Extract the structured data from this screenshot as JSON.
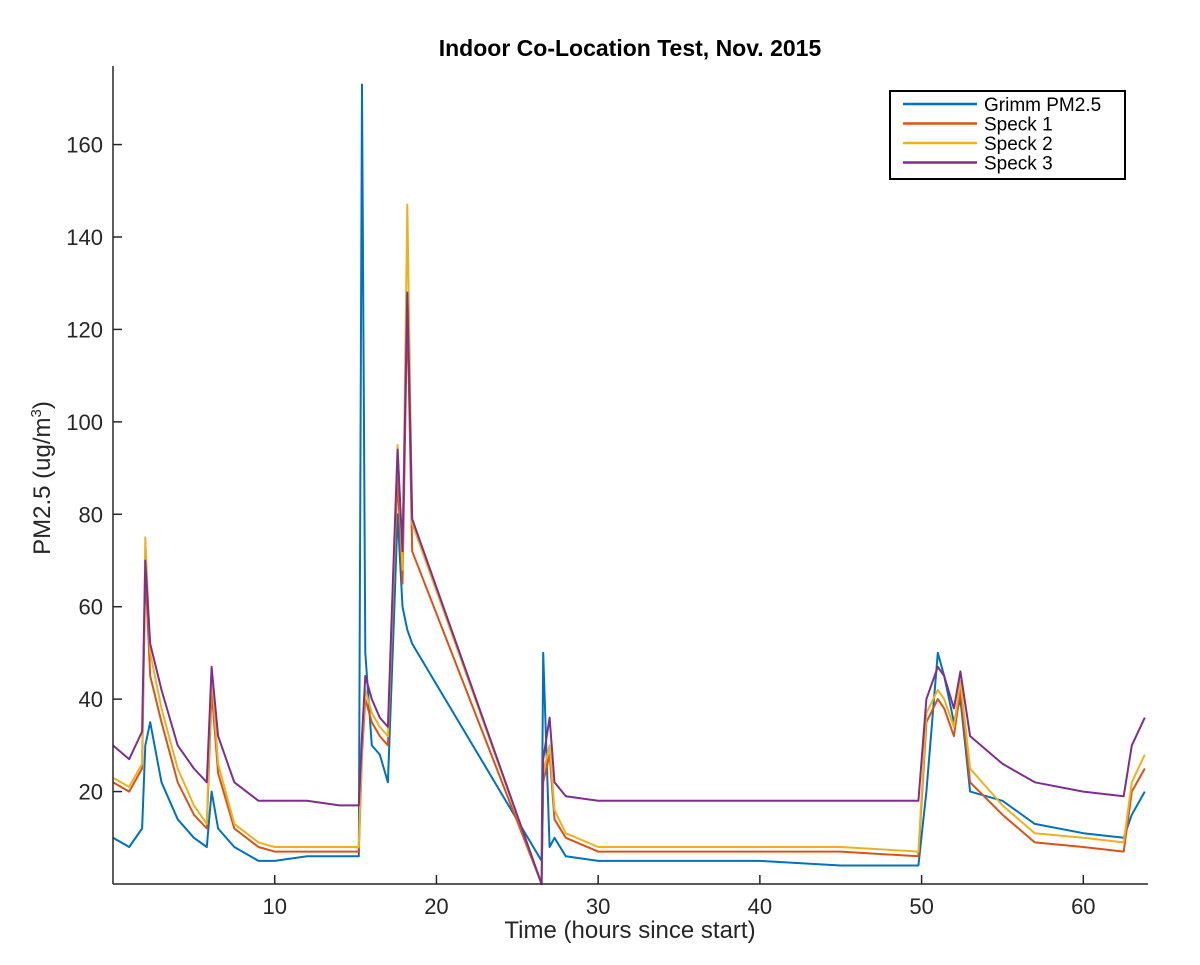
{
  "chart_data": {
    "type": "line",
    "title": "Indoor Co-Location Test, Nov. 2015",
    "xlabel": "Time (hours since start)",
    "ylabel": "PM2.5 (ug/m",
    "ylabel_superscript": "3",
    "ylabel_suffix": ")",
    "xlim": [
      0,
      64
    ],
    "ylim": [
      0,
      177
    ],
    "xticks": [
      10,
      20,
      30,
      40,
      50,
      60
    ],
    "yticks": [
      20,
      40,
      60,
      80,
      100,
      120,
      140,
      160
    ],
    "grid": false,
    "legend_position": "top-right",
    "x": [
      0,
      1,
      1.8,
      2,
      2.3,
      3,
      4,
      5,
      5.8,
      6.1,
      6.5,
      7.5,
      9,
      10,
      12,
      14,
      15.2,
      15.4,
      15.6,
      16,
      16.5,
      17,
      17.4,
      17.6,
      17.9,
      18.2,
      18.5,
      26.5,
      26.6,
      27,
      27.3,
      28,
      30,
      35,
      40,
      45,
      49.8,
      50.3,
      51,
      51.4,
      52,
      52.4,
      53,
      55,
      57,
      60,
      62.5,
      63,
      63.8
    ],
    "series": [
      {
        "name": "Grimm PM2.5",
        "color": "#0072BD",
        "values": [
          10,
          8,
          12,
          30,
          35,
          22,
          14,
          10,
          8,
          20,
          12,
          8,
          5,
          5,
          6,
          6,
          6,
          173,
          50,
          30,
          28,
          22,
          60,
          80,
          60,
          55,
          52,
          5,
          50,
          8,
          10,
          6,
          5,
          5,
          5,
          4,
          4,
          20,
          50,
          45,
          35,
          40,
          20,
          18,
          13,
          11,
          10,
          15,
          20
        ]
      },
      {
        "name": "Speck 1",
        "color": "#D95319",
        "values": [
          22,
          20,
          25,
          68,
          45,
          35,
          22,
          15,
          12,
          42,
          24,
          12,
          8,
          7,
          7,
          7,
          7,
          28,
          40,
          35,
          32,
          30,
          70,
          88,
          65,
          125,
          72,
          0,
          22,
          28,
          14,
          10,
          7,
          7,
          7,
          7,
          6,
          35,
          40,
          38,
          32,
          42,
          22,
          15,
          9,
          8,
          7,
          20,
          25
        ]
      },
      {
        "name": "Speck 2",
        "color": "#EDB120",
        "values": [
          23,
          21,
          26,
          75,
          50,
          38,
          25,
          17,
          13,
          46,
          26,
          13,
          9,
          8,
          8,
          8,
          8,
          30,
          42,
          37,
          34,
          32,
          72,
          95,
          68,
          147,
          78,
          0,
          24,
          30,
          16,
          11,
          8,
          8,
          8,
          8,
          7,
          37,
          42,
          40,
          34,
          44,
          25,
          17,
          11,
          10,
          9,
          22,
          28
        ]
      },
      {
        "name": "Speck 3",
        "color": "#7E2F8E",
        "values": [
          30,
          27,
          33,
          70,
          52,
          42,
          30,
          25,
          22,
          47,
          32,
          22,
          18,
          18,
          18,
          17,
          17,
          32,
          45,
          40,
          36,
          34,
          75,
          94,
          72,
          128,
          79,
          0,
          27,
          36,
          22,
          19,
          18,
          18,
          18,
          18,
          18,
          40,
          47,
          45,
          38,
          46,
          32,
          26,
          22,
          20,
          19,
          30,
          36
        ]
      }
    ]
  }
}
